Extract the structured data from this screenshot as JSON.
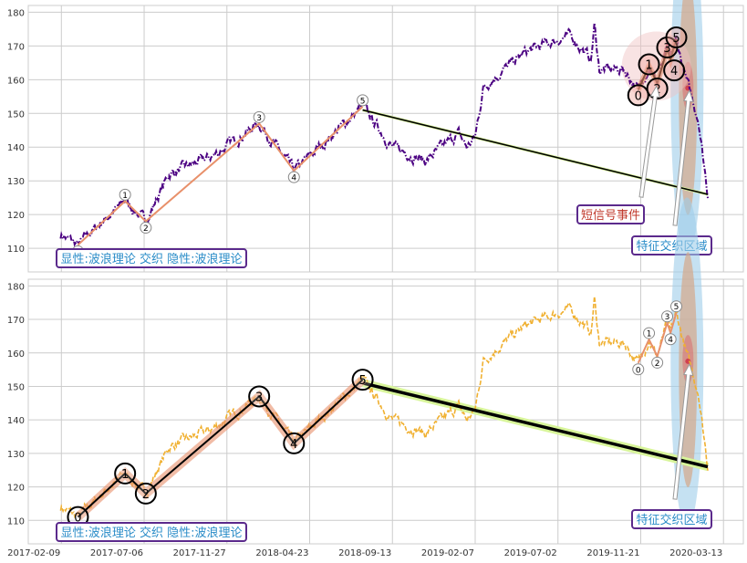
{
  "chart_data": [
    {
      "type": "line",
      "panel": "top",
      "series_name": "price",
      "line_color": "#4b0082",
      "legend_text": "显性:波浪理论 交织 隐性:波浪理论",
      "annotations": [
        "短信号事件",
        "特征交织区域"
      ],
      "main_wave_labels": [
        "0",
        "1",
        "2",
        "3",
        "4",
        "5"
      ],
      "short_wave_labels": [
        "0",
        "1",
        "2",
        "3",
        "4",
        "5"
      ]
    },
    {
      "type": "line",
      "panel": "bottom",
      "series_name": "price",
      "line_color": "#f0b030",
      "legend_text": "显性:波浪理论 交织 隐性:波浪理论",
      "annotations": [
        "特征交织区域"
      ],
      "main_wave_labels": [
        "0",
        "1",
        "2",
        "3",
        "4",
        "5"
      ],
      "short_wave_labels": [
        "0",
        "1",
        "2",
        "3",
        "4",
        "5"
      ]
    }
  ],
  "shared": {
    "ylim": [
      103,
      182
    ],
    "yticks": [
      110,
      120,
      130,
      140,
      150,
      160,
      170,
      180
    ],
    "xlim_index": [
      -40,
      824
    ],
    "xtick_index": [
      0,
      100,
      200,
      300,
      400,
      500,
      600,
      700,
      800
    ],
    "xtick_labels": [
      "2017-02-09",
      "2017-07-06",
      "2017-11-27",
      "2018-04-23",
      "2018-09-13",
      "2019-02-07",
      "2019-07-02",
      "2019-11-21",
      "2020-03-13"
    ],
    "price_waypoints": [
      [
        -1,
        114
      ],
      [
        0,
        114
      ],
      [
        20,
        111
      ],
      [
        45,
        117
      ],
      [
        77,
        124
      ],
      [
        102,
        118
      ],
      [
        130,
        132
      ],
      [
        180,
        137
      ],
      [
        239,
        147
      ],
      [
        281,
        133
      ],
      [
        364,
        152
      ],
      [
        400,
        140
      ],
      [
        440,
        136
      ],
      [
        480,
        144
      ],
      [
        490,
        140
      ],
      [
        500,
        143
      ],
      [
        510,
        158
      ],
      [
        560,
        168
      ],
      [
        600,
        172
      ],
      [
        615,
        173
      ],
      [
        640,
        166
      ],
      [
        644,
        176
      ],
      [
        650,
        163
      ],
      [
        680,
        163
      ],
      [
        697,
        157
      ],
      [
        710,
        164
      ],
      [
        720,
        159
      ],
      [
        732,
        169
      ],
      [
        736,
        166
      ],
      [
        743,
        172
      ],
      [
        755,
        160
      ],
      [
        770,
        148
      ],
      [
        781,
        126
      ]
    ],
    "main_waves": [
      [
        20,
        111
      ],
      [
        77,
        124
      ],
      [
        102,
        118
      ],
      [
        239,
        147
      ],
      [
        281,
        133
      ],
      [
        364,
        152
      ]
    ],
    "short_waves": [
      [
        697,
        157
      ],
      [
        710,
        164
      ],
      [
        720,
        159
      ],
      [
        732,
        169
      ],
      [
        736,
        166
      ],
      [
        743,
        172
      ]
    ],
    "trend_line": [
      [
        364,
        151
      ],
      [
        781,
        126
      ]
    ],
    "colors": {
      "wave": "#e8906a",
      "trend_halo": "#d8f59a",
      "ellipse_blue": "#9fcdea",
      "ellipse_brown": "#d4a88a",
      "ellipse_red": "#d9666a",
      "box_border": "#5b2a8c",
      "legend_text": "#2a8cc8",
      "short_signal_text": "#c0392b",
      "zone_text": "#2a8cc8"
    }
  }
}
